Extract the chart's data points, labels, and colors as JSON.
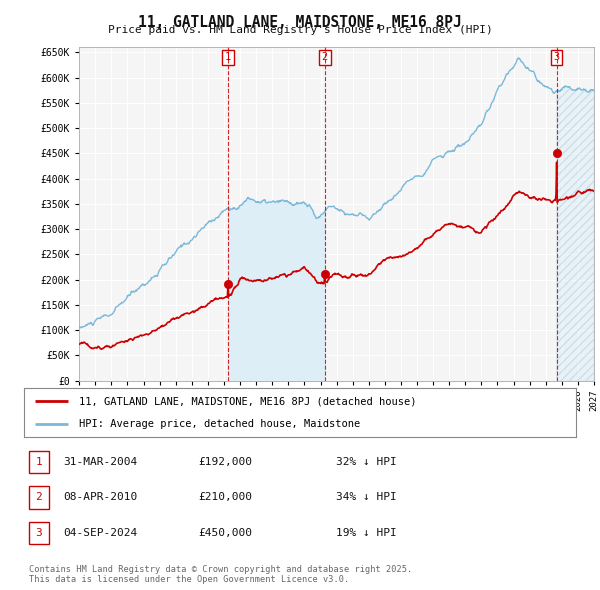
{
  "title": "11, GATLAND LANE, MAIDSTONE, ME16 8PJ",
  "subtitle": "Price paid vs. HM Land Registry's House Price Index (HPI)",
  "ylim": [
    0,
    660000
  ],
  "yticks": [
    0,
    50000,
    100000,
    150000,
    200000,
    250000,
    300000,
    350000,
    400000,
    450000,
    500000,
    550000,
    600000,
    650000
  ],
  "ytick_labels": [
    "£0",
    "£50K",
    "£100K",
    "£150K",
    "£200K",
    "£250K",
    "£300K",
    "£350K",
    "£400K",
    "£450K",
    "£500K",
    "£550K",
    "£600K",
    "£650K"
  ],
  "hpi_color": "#7ab8d9",
  "hpi_fill_color": "#ddeef7",
  "price_color": "#cc0000",
  "vline_color": "#cc0000",
  "background_color": "#ffffff",
  "plot_bg_color": "#f5f5f5",
  "grid_color": "#ffffff",
  "transactions": [
    {
      "date_num": 2004.25,
      "price": 192000,
      "label": "1"
    },
    {
      "date_num": 2010.27,
      "price": 210000,
      "label": "2"
    },
    {
      "date_num": 2024.67,
      "price": 450000,
      "label": "3"
    }
  ],
  "legend_line1": "11, GATLAND LANE, MAIDSTONE, ME16 8PJ (detached house)",
  "legend_line2": "HPI: Average price, detached house, Maidstone",
  "table_rows": [
    {
      "num": "1",
      "date": "31-MAR-2004",
      "price": "£192,000",
      "note": "32% ↓ HPI"
    },
    {
      "num": "2",
      "date": "08-APR-2010",
      "price": "£210,000",
      "note": "34% ↓ HPI"
    },
    {
      "num": "3",
      "date": "04-SEP-2024",
      "price": "£450,000",
      "note": "19% ↓ HPI"
    }
  ],
  "footer": "Contains HM Land Registry data © Crown copyright and database right 2025.\nThis data is licensed under the Open Government Licence v3.0.",
  "xmin": 1995,
  "xmax": 2027
}
